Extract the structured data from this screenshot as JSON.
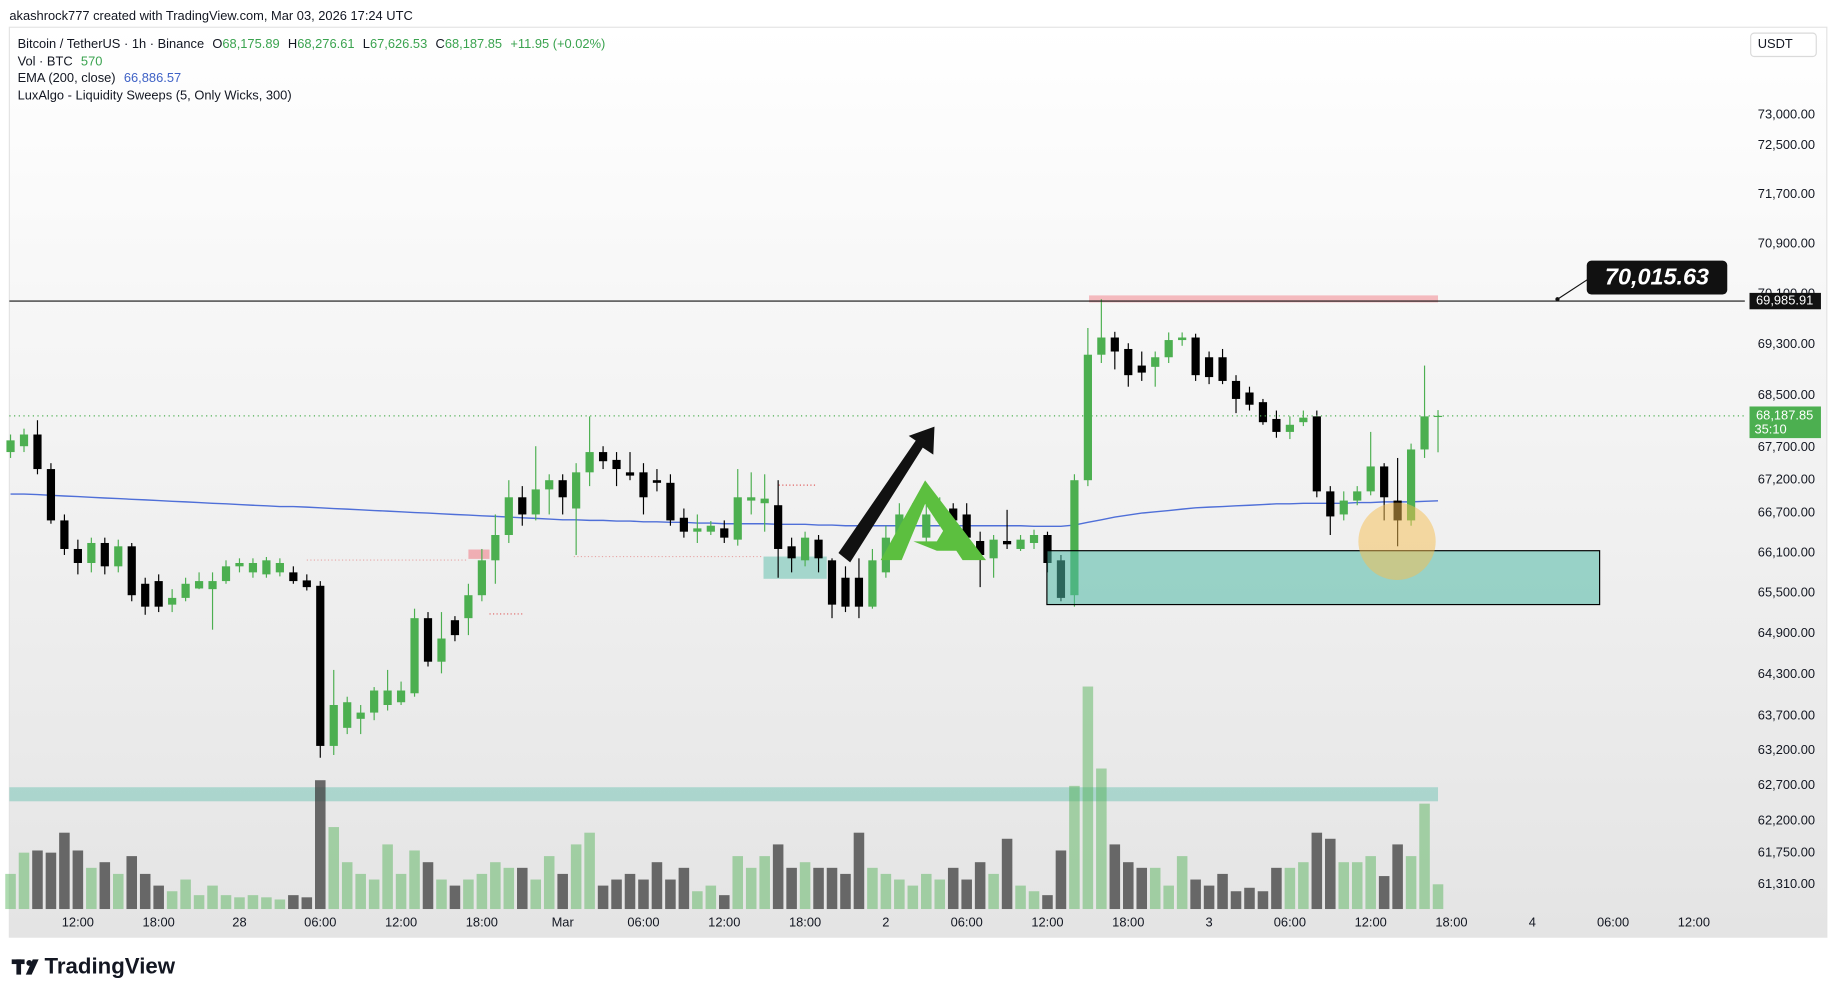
{
  "header": {
    "attribution": "akashrock777 created with TradingView.com, Mar 03, 2026 17:24 UTC",
    "symbol": "Bitcoin / TetherUS · 1h · Binance",
    "open_label": "O",
    "open": "68,175.89",
    "high_label": "H",
    "high": "68,276.61",
    "low_label": "L",
    "low": "67,626.53",
    "close_label": "C",
    "close": "68,187.85",
    "change": "+11.95 (+0.02%)",
    "volume_name": "Vol · BTC",
    "volume": "570",
    "ema_name": "EMA (200, close)",
    "ema": "66,886.57",
    "indicator": "LuxAlgo - Liquidity Sweeps (5, Only Wicks, 300)",
    "brand": "TradingView"
  },
  "chart_data": {
    "type": "candlestick",
    "currency": "USDT",
    "log_scale": true,
    "grid": false,
    "up_color": "#4caf50",
    "down_color": "#000000",
    "volume_up_color": "rgba(76,175,80,0.45)",
    "volume_down_color": "rgba(60,60,60,0.75)",
    "ylim": [
      60940,
      74470
    ],
    "yticks": [
      {
        "value": 73000,
        "label": "73,000.00"
      },
      {
        "value": 72500,
        "label": "72,500.00"
      },
      {
        "value": 71700,
        "label": "71,700.00"
      },
      {
        "value": 70900,
        "label": "70,900.00"
      },
      {
        "value": 70100,
        "label": "70,100.00"
      },
      {
        "value": 69300,
        "label": "69,300.00"
      },
      {
        "value": 68500,
        "label": "68,500.00"
      },
      {
        "value": 67700,
        "label": "67,700.00"
      },
      {
        "value": 67200,
        "label": "67,200.00"
      },
      {
        "value": 66700,
        "label": "66,700.00"
      },
      {
        "value": 66100,
        "label": "66,100.00"
      },
      {
        "value": 65500,
        "label": "65,500.00"
      },
      {
        "value": 64900,
        "label": "64,900.00"
      },
      {
        "value": 64300,
        "label": "64,300.00"
      },
      {
        "value": 63700,
        "label": "63,700.00"
      },
      {
        "value": 63200,
        "label": "63,200.00"
      },
      {
        "value": 62700,
        "label": "62,700.00"
      },
      {
        "value": 62200,
        "label": "62,200.00"
      },
      {
        "value": 61750,
        "label": "61,750.00"
      },
      {
        "value": 61310,
        "label": "61,310.00"
      }
    ],
    "categories": [
      null,
      null,
      null,
      null,
      null,
      "12:00",
      null,
      null,
      null,
      null,
      null,
      "18:00",
      null,
      null,
      null,
      null,
      null,
      "28",
      null,
      null,
      null,
      null,
      null,
      "06:00",
      null,
      null,
      null,
      null,
      null,
      "12:00",
      null,
      null,
      null,
      null,
      null,
      "18:00",
      null,
      null,
      null,
      null,
      null,
      "Mar",
      null,
      null,
      null,
      null,
      null,
      "06:00",
      null,
      null,
      null,
      null,
      null,
      "12:00",
      null,
      null,
      null,
      null,
      null,
      "18:00",
      null,
      null,
      null,
      null,
      null,
      "2",
      null,
      null,
      null,
      null,
      null,
      "06:00",
      null,
      null,
      null,
      null,
      null,
      "12:00",
      null,
      null,
      null,
      null,
      null,
      "18:00",
      null,
      null,
      null,
      null,
      null,
      "3",
      null,
      null,
      null,
      null,
      null,
      "06:00",
      null,
      null,
      null,
      null,
      null,
      "12:00",
      null,
      null,
      null,
      null,
      null,
      "18:00",
      null,
      null,
      null,
      null,
      null,
      "4",
      null,
      null,
      null,
      null,
      null,
      "06:00",
      null,
      null,
      null,
      null,
      null,
      "12:00",
      null,
      null,
      null
    ],
    "open": [
      67630,
      67720,
      67900,
      67370,
      66590,
      66160,
      65950,
      66250,
      65900,
      66200,
      65640,
      65680,
      65330,
      65430,
      65570,
      65560,
      65680,
      65900,
      65810,
      65780,
      65810,
      65810,
      65690,
      65610,
      63270,
      63530,
      63660,
      63750,
      63860,
      63900,
      64030,
      65130,
      64490,
      65100,
      65130,
      65470,
      65990,
      66370,
      66940,
      66680,
      67060,
      67200,
      66770,
      67320,
      67630,
      67510,
      67320,
      67320,
      67200,
      67160,
      66630,
      66420,
      66420,
      66470,
      66300,
      66890,
      66850,
      66820,
      66200,
      65990,
      66300,
      65990,
      65730,
      65730,
      65300,
      65810,
      66250,
      66630,
      66330,
      66590,
      66770,
      66680,
      66280,
      66020,
      66280,
      66160,
      66250,
      66370,
      65990,
      65470,
      67200,
      69140,
      69410,
      69230,
      68970,
      68950,
      69100,
      69370,
      69410,
      69100,
      69100,
      68730,
      68550,
      68400,
      68140,
      67940,
      68090,
      68180,
      67030,
      66680,
      66890,
      67030,
      67410,
      66890,
      66590,
      67670,
      68175.89,
      null,
      null,
      null,
      null,
      null,
      null,
      null,
      null,
      null,
      null,
      null,
      null,
      null,
      null,
      null,
      null,
      null,
      null,
      null,
      null,
      null,
      null
    ],
    "high": [
      67900,
      67990,
      68120,
      67460,
      66680,
      66300,
      66330,
      66330,
      66300,
      66250,
      65730,
      65780,
      65560,
      65730,
      65810,
      65810,
      65990,
      66020,
      66020,
      66040,
      66020,
      65900,
      65780,
      65680,
      64370,
      63980,
      63860,
      64120,
      64370,
      64200,
      65270,
      65220,
      65220,
      65160,
      65640,
      66160,
      66680,
      67200,
      67110,
      67720,
      67290,
      67290,
      67460,
      68180,
      67720,
      67630,
      67630,
      67460,
      67370,
      67290,
      66770,
      66680,
      66580,
      66590,
      67370,
      67320,
      67290,
      67200,
      66330,
      66420,
      66370,
      66020,
      65900,
      66020,
      66160,
      66510,
      66850,
      66850,
      66850,
      66940,
      66850,
      66850,
      66420,
      66370,
      66750,
      66370,
      66450,
      66420,
      66070,
      67290,
      69560,
      70015.63,
      69500,
      69320,
      69190,
      69190,
      69490,
      69490,
      69470,
      69190,
      69230,
      68820,
      68640,
      68450,
      68270,
      68180,
      68270,
      68270,
      67110,
      67030,
      67110,
      67940,
      67460,
      67540,
      67760,
      68970,
      68276.61,
      null,
      null,
      null,
      null,
      null,
      null,
      null,
      null,
      null,
      null,
      null,
      null,
      null,
      null,
      null,
      null,
      null,
      null,
      null,
      null,
      null,
      null
    ],
    "low": [
      67540,
      67630,
      67290,
      66540,
      66070,
      65780,
      65810,
      65780,
      65810,
      65380,
      65180,
      65220,
      65220,
      65380,
      65560,
      64960,
      65640,
      65810,
      65730,
      65730,
      65750,
      65640,
      65540,
      63100,
      63140,
      63440,
      63440,
      63640,
      63780,
      63860,
      63980,
      64420,
      64320,
      64790,
      64880,
      65380,
      65640,
      66250,
      66510,
      66590,
      66680,
      66680,
      66070,
      67110,
      67370,
      67110,
      67200,
      66680,
      67030,
      66510,
      66330,
      66250,
      66370,
      66250,
      66210,
      66680,
      66420,
      65730,
      65810,
      65900,
      65810,
      65130,
      65220,
      65130,
      65270,
      65730,
      66160,
      66590,
      66250,
      66510,
      66330,
      66250,
      65590,
      65730,
      66160,
      66130,
      66160,
      65810,
      65380,
      65300,
      67110,
      69010,
      68910,
      68640,
      68730,
      68640,
      69010,
      69280,
      68730,
      68680,
      68680,
      68230,
      68270,
      68050,
      67850,
      67830,
      68030,
      66940,
      66370,
      66590,
      66820,
      66970,
      66590,
      66200,
      66510,
      67540,
      67626.53,
      null,
      null,
      null,
      null,
      null,
      null,
      null,
      null,
      null,
      null,
      null,
      null,
      null,
      null,
      null,
      null,
      null,
      null,
      null,
      null,
      null,
      null
    ],
    "close": [
      67810,
      67900,
      67370,
      66590,
      66160,
      65950,
      66250,
      65900,
      66200,
      65470,
      65300,
      65300,
      65430,
      65640,
      65680,
      65680,
      65900,
      65950,
      65950,
      65990,
      65950,
      65680,
      65590,
      63270,
      63860,
      63900,
      63750,
      64070,
      64070,
      64070,
      65130,
      64490,
      64830,
      64880,
      65470,
      65990,
      66370,
      66940,
      66680,
      67060,
      67200,
      66940,
      67320,
      67630,
      67490,
      67370,
      67270,
      66940,
      67160,
      66590,
      66420,
      66470,
      66510,
      66330,
      66940,
      66940,
      66920,
      66160,
      66020,
      66330,
      66020,
      65330,
      65300,
      65300,
      65990,
      66330,
      66680,
      66710,
      66680,
      66770,
      66590,
      66330,
      66070,
      66300,
      66230,
      66300,
      66370,
      65950,
      65430,
      67200,
      69140,
      69410,
      69190,
      68820,
      68860,
      69100,
      69370,
      69410,
      68820,
      68790,
      68730,
      68450,
      68360,
      68090,
      67940,
      68050,
      68160,
      67030,
      66650,
      66890,
      67030,
      67410,
      66940,
      66590,
      67670,
      68180,
      68187.85,
      null,
      null,
      null,
      null,
      null,
      null,
      null,
      null,
      null,
      null,
      null,
      null,
      null,
      null,
      null,
      null,
      null,
      null,
      null,
      null,
      null,
      null
    ],
    "volume": [
      810,
      1300,
      1350,
      1300,
      1760,
      1350,
      950,
      1080,
      810,
      1220,
      810,
      540,
      410,
      680,
      320,
      540,
      320,
      270,
      320,
      270,
      220,
      320,
      270,
      2970,
      1890,
      1080,
      810,
      680,
      1490,
      810,
      1350,
      1080,
      680,
      540,
      680,
      810,
      1080,
      950,
      950,
      680,
      1220,
      810,
      1490,
      1760,
      540,
      680,
      810,
      680,
      1080,
      680,
      950,
      410,
      540,
      320,
      1220,
      950,
      1220,
      1490,
      950,
      1080,
      950,
      950,
      810,
      1760,
      950,
      810,
      680,
      540,
      810,
      680,
      950,
      680,
      1080,
      810,
      1620,
      540,
      410,
      320,
      1350,
      2840,
      5130,
      3240,
      1490,
      1080,
      950,
      950,
      540,
      1220,
      680,
      540,
      810,
      410,
      490,
      410,
      950,
      950,
      1080,
      1760,
      1620,
      1080,
      1080,
      1220,
      760,
      1490,
      1220,
      2430,
      570,
      null,
      null,
      null,
      null,
      null,
      null,
      null,
      null,
      null,
      null,
      null,
      null,
      null,
      null,
      null,
      null,
      null,
      null,
      null,
      null,
      null,
      null
    ],
    "ema": {
      "color": "#4f6fd8",
      "values": [
        66990,
        66990,
        66980,
        66970,
        66960,
        66950,
        66940,
        66930,
        66920,
        66910,
        66900,
        66890,
        66880,
        66870,
        66860,
        66850,
        66840,
        66830,
        66820,
        66810,
        66800,
        66800,
        66790,
        66780,
        66770,
        66760,
        66750,
        66740,
        66730,
        66720,
        66710,
        66700,
        66690,
        66680,
        66670,
        66660,
        66650,
        66640,
        66630,
        66620,
        66610,
        66600,
        66600,
        66590,
        66590,
        66580,
        66580,
        66570,
        66570,
        66560,
        66560,
        66550,
        66550,
        66540,
        66540,
        66540,
        66540,
        66530,
        66530,
        66530,
        66520,
        66520,
        66510,
        66510,
        66510,
        66510,
        66510,
        66510,
        66510,
        66510,
        66510,
        66510,
        66510,
        66510,
        66510,
        66510,
        66500,
        66500,
        66500,
        66520,
        66560,
        66600,
        66640,
        66670,
        66700,
        66720,
        66740,
        66760,
        66780,
        66790,
        66800,
        66810,
        66820,
        66830,
        66840,
        66840,
        66850,
        66850,
        66850,
        66850,
        66860,
        66860,
        66870,
        66870,
        66870,
        66880,
        66886.57,
        null,
        null,
        null,
        null,
        null,
        null,
        null,
        null,
        null,
        null,
        null,
        null,
        null,
        null,
        null,
        null,
        null,
        null,
        null,
        null,
        null,
        null
      ]
    },
    "current_price": {
      "value": 68187.85,
      "label": "68,187.85"
    },
    "countdown": "35:10",
    "level": {
      "value": 69985.91,
      "label": "69,985.91"
    },
    "callout": {
      "value": 70015.63,
      "label": "70,015.63"
    }
  }
}
